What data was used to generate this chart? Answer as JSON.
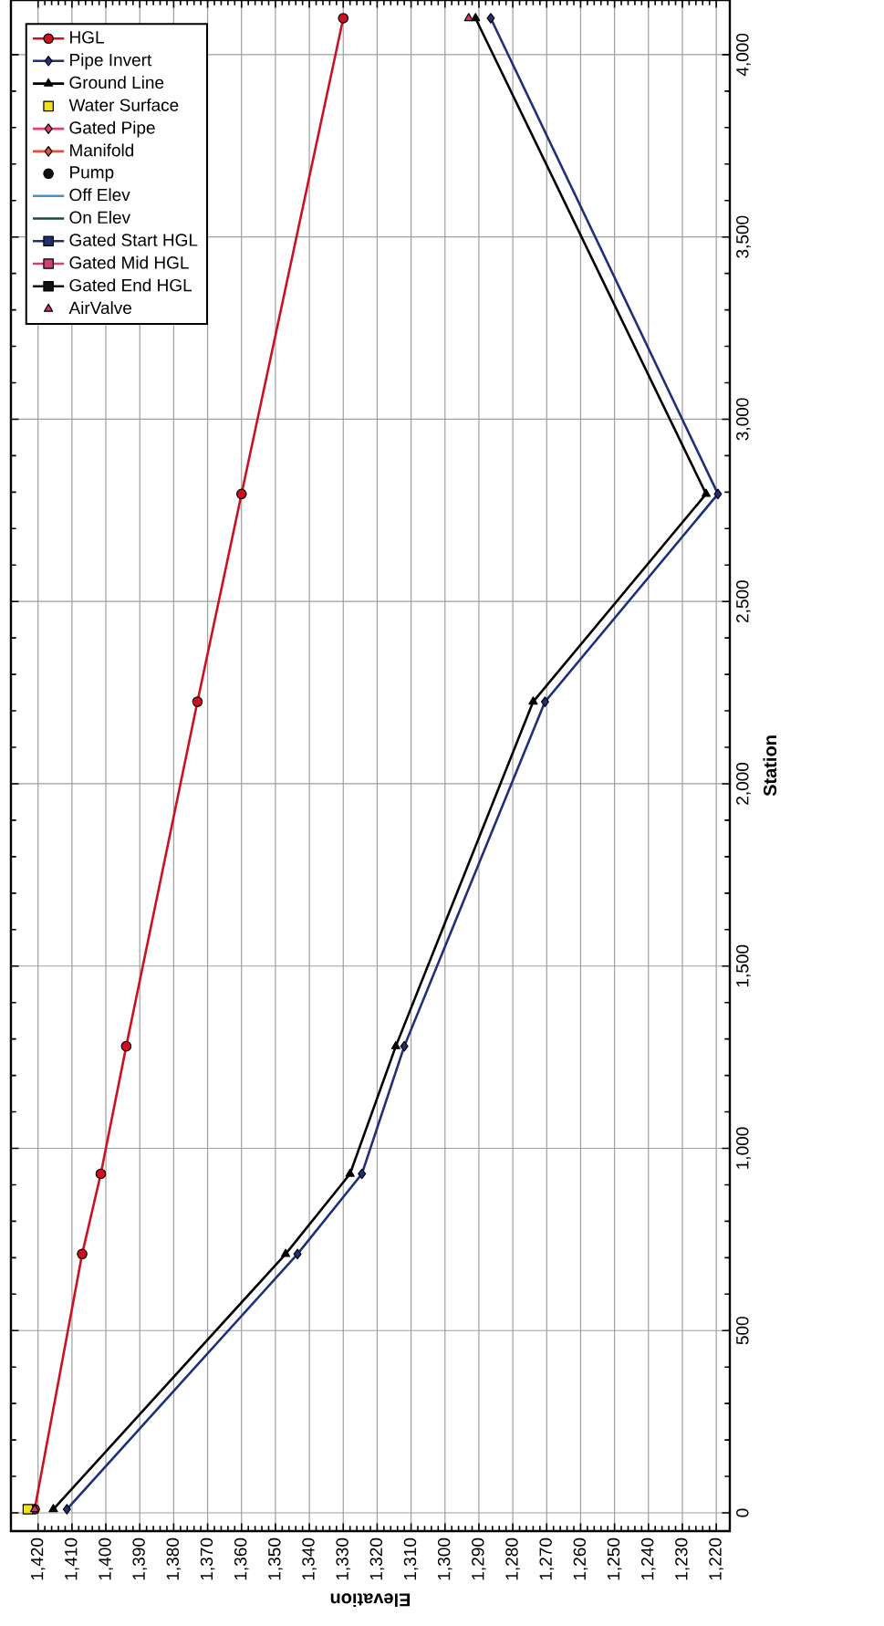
{
  "chart_data": {
    "type": "line",
    "xlabel": "Elevation",
    "ylabel": "Station",
    "xlim": [
      1428,
      1216
    ],
    "ylim": [
      -50,
      4150
    ],
    "xticks": [
      {
        "value": 1220,
        "label": "1,220"
      },
      {
        "value": 1230,
        "label": "1,230"
      },
      {
        "value": 1240,
        "label": "1,240"
      },
      {
        "value": 1250,
        "label": "1,250"
      },
      {
        "value": 1260,
        "label": "1,260"
      },
      {
        "value": 1270,
        "label": "1,270"
      },
      {
        "value": 1280,
        "label": "1,280"
      },
      {
        "value": 1290,
        "label": "1,290"
      },
      {
        "value": 1300,
        "label": "1,300"
      },
      {
        "value": 1310,
        "label": "1,310"
      },
      {
        "value": 1320,
        "label": "1,320"
      },
      {
        "value": 1330,
        "label": "1,330"
      },
      {
        "value": 1340,
        "label": "1,340"
      },
      {
        "value": 1350,
        "label": "1,350"
      },
      {
        "value": 1360,
        "label": "1,360"
      },
      {
        "value": 1370,
        "label": "1,370"
      },
      {
        "value": 1380,
        "label": "1,380"
      },
      {
        "value": 1390,
        "label": "1,390"
      },
      {
        "value": 1400,
        "label": "1,400"
      },
      {
        "value": 1410,
        "label": "1,410"
      },
      {
        "value": 1420,
        "label": "1,420"
      }
    ],
    "yticks": [
      0,
      500,
      {
        "value": 1000,
        "label": "1,000"
      },
      {
        "value": 1500,
        "label": "1,500"
      },
      {
        "value": 2000,
        "label": "2,000"
      },
      {
        "value": 2500,
        "label": "2,500"
      },
      {
        "value": 3000,
        "label": "3,000"
      },
      {
        "value": 3500,
        "label": "3,500"
      },
      {
        "value": 4000,
        "label": "4,000"
      }
    ],
    "grid": true,
    "legend": "top left",
    "series": [
      {
        "name": "HGL",
        "type": "line",
        "color": "#cc1122",
        "marker": "circle",
        "x": [
          1421,
          1407,
          1401.5,
          1394,
          1373,
          1360,
          1330
        ],
        "values": [
          10,
          710,
          930,
          1280,
          2225,
          2795,
          4100
        ]
      },
      {
        "name": "Pipe Invert",
        "type": "line",
        "color": "#1f2f7a",
        "marker": "diamond",
        "x": [
          1411.5,
          1343.5,
          1324.5,
          1312,
          1270.5,
          1219.5,
          1286.5
        ],
        "values": [
          10,
          710,
          930,
          1280,
          2225,
          2795,
          4100
        ]
      },
      {
        "name": "Ground Line",
        "type": "line",
        "color": "#000000",
        "marker": "triangle",
        "x": [
          1415.5,
          1347,
          1328,
          1314.5,
          1274,
          1223,
          1291
        ],
        "values": [
          10,
          710,
          930,
          1280,
          2225,
          2795,
          4100
        ]
      },
      {
        "name": "Water Surface",
        "type": "scatter",
        "color": "#f0e020",
        "marker": "square",
        "x": [
          1423
        ],
        "values": [
          10
        ]
      },
      {
        "name": "Gated Pipe",
        "type": "line",
        "color": "#e04070",
        "marker": "diamond"
      },
      {
        "name": "Manifold",
        "type": "line",
        "color": "#e05040",
        "marker": "diamond"
      },
      {
        "name": "Pump",
        "type": "scatter",
        "color": "#111111",
        "marker": "circle"
      },
      {
        "name": "Off Elev",
        "type": "line",
        "color": "#4a90c0",
        "marker": "none"
      },
      {
        "name": "On Elev",
        "type": "line",
        "color": "#1a4a3a",
        "marker": "none"
      },
      {
        "name": "Gated Start HGL",
        "type": "line",
        "color": "#203070",
        "marker": "square"
      },
      {
        "name": "Gated Mid HGL",
        "type": "line",
        "color": "#d04070",
        "marker": "square"
      },
      {
        "name": "Gated End HGL",
        "type": "line",
        "color": "#111111",
        "marker": "square"
      },
      {
        "name": "AirValve",
        "type": "scatter",
        "color": "#e03070",
        "marker": "triangle",
        "x": [
          1421,
          1293
        ],
        "values": [
          10,
          4100
        ]
      }
    ]
  }
}
